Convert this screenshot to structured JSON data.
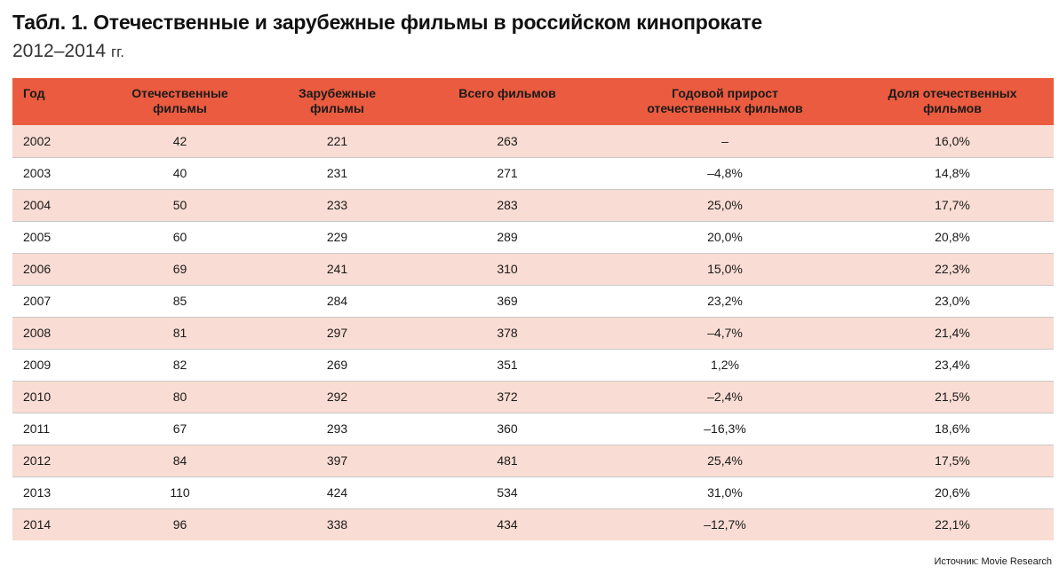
{
  "title": "Табл. 1. Отечественные и зарубежные фильмы в российском кинопрокате",
  "subtitle": {
    "years": "2012–2014",
    "suffix": "гг."
  },
  "table": {
    "headers": [
      "Год",
      "Отечественные фильмы",
      "Зарубежные фильмы",
      "Всего фильмов",
      "Годовой прирост отечественных фильмов",
      "Доля отечественных фильмов"
    ],
    "rows": [
      [
        "2002",
        "42",
        "221",
        "263",
        "–",
        "16,0%"
      ],
      [
        "2003",
        "40",
        "231",
        "271",
        "–4,8%",
        "14,8%"
      ],
      [
        "2004",
        "50",
        "233",
        "283",
        "25,0%",
        "17,7%"
      ],
      [
        "2005",
        "60",
        "229",
        "289",
        "20,0%",
        "20,8%"
      ],
      [
        "2006",
        "69",
        "241",
        "310",
        "15,0%",
        "22,3%"
      ],
      [
        "2007",
        "85",
        "284",
        "369",
        "23,2%",
        "23,0%"
      ],
      [
        "2008",
        "81",
        "297",
        "378",
        "–4,7%",
        "21,4%"
      ],
      [
        "2009",
        "82",
        "269",
        "351",
        "1,2%",
        "23,4%"
      ],
      [
        "2010",
        "80",
        "292",
        "372",
        "–2,4%",
        "21,5%"
      ],
      [
        "2011",
        "67",
        "293",
        "360",
        "–16,3%",
        "18,6%"
      ],
      [
        "2012",
        "84",
        "397",
        "481",
        "25,4%",
        "17,5%"
      ],
      [
        "2013",
        "110",
        "424",
        "534",
        "31,0%",
        "20,6%"
      ],
      [
        "2014",
        "96",
        "338",
        "434",
        "–12,7%",
        "22,1%"
      ]
    ]
  },
  "source": "Источник: Movie Research",
  "colors": {
    "header_bg": "#ea5b3f",
    "stripe_bg": "#f9dcd3"
  }
}
